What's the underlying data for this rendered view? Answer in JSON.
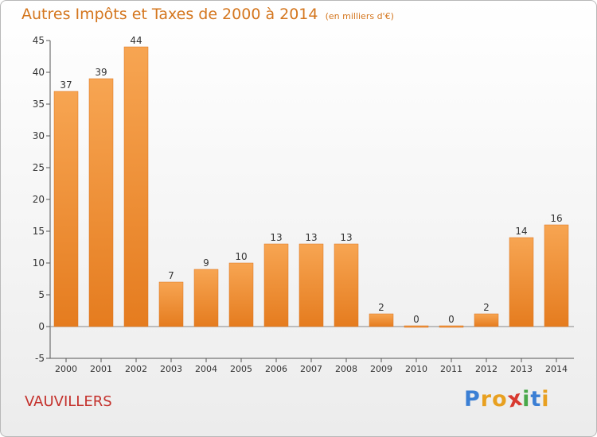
{
  "chart_data": {
    "type": "bar",
    "title": "Autres Impôts et Taxes de 2000 à 2014",
    "subtitle": "(en milliers d'€)",
    "categories": [
      "2000",
      "2001",
      "2002",
      "2003",
      "2004",
      "2005",
      "2006",
      "2007",
      "2008",
      "2009",
      "2010",
      "2011",
      "2012",
      "2013",
      "2014"
    ],
    "values": [
      37,
      39,
      44,
      7,
      9,
      10,
      13,
      13,
      13,
      2,
      0,
      0,
      2,
      14,
      16
    ],
    "data_labels": [
      "37",
      "39",
      "44",
      "7",
      "9",
      "10",
      "13",
      "13",
      "13",
      "2",
      "0",
      "0",
      "2",
      "14",
      "16"
    ],
    "ylim": [
      -5,
      45
    ],
    "yticks": [
      -5,
      0,
      5,
      10,
      15,
      20,
      25,
      30,
      35,
      40,
      45
    ],
    "grid": false,
    "legend": "none",
    "bar_color": "#f0962e"
  },
  "footer": {
    "town": "VAUVILLERS",
    "logo_letters": [
      "P",
      "r",
      "o",
      "x",
      "i",
      "t",
      "i"
    ],
    "logo_colors": [
      "#3b7fd4",
      "#e8a020",
      "#e8a020",
      "#d83a30",
      "#49a84a",
      "#3b7fd4",
      "#e8a020"
    ]
  }
}
